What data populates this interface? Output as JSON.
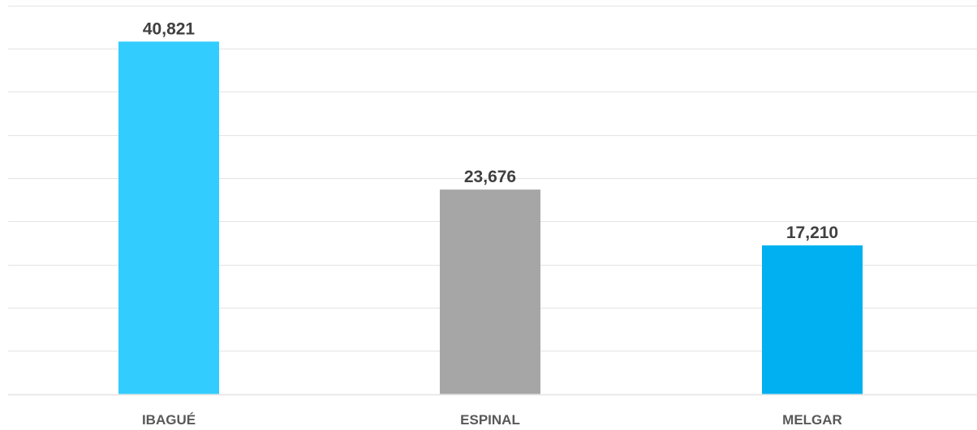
{
  "chart_data": {
    "type": "bar",
    "categories": [
      "IBAGUÉ",
      "ESPINAL",
      "MELGAR"
    ],
    "values": [
      40821,
      23676,
      17210
    ],
    "value_labels": [
      "40,821",
      "23,676",
      "17,210"
    ],
    "colors": [
      "#33CCFF",
      "#A6A6A6",
      "#00B0F0"
    ],
    "gridline_color": "#E3E3E3",
    "ylim": [
      0,
      45000
    ],
    "grid_step": 5000,
    "grid": true,
    "legend": false
  }
}
